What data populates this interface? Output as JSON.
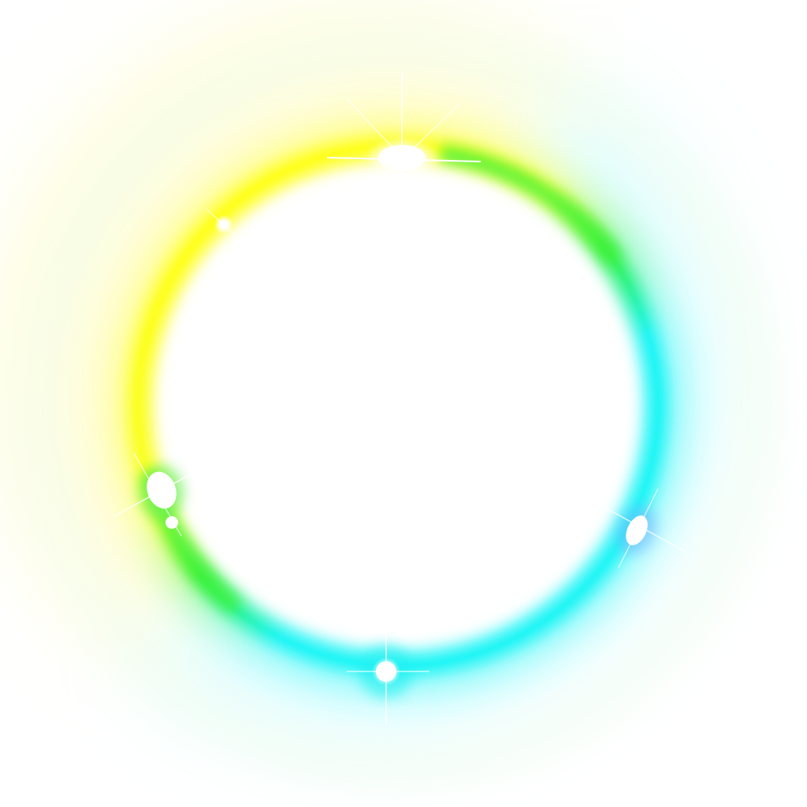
{
  "artwork": {
    "subject": "glowing-ring",
    "background_color": "#ffffff",
    "ring_colors": {
      "yellow": "#ffff1a",
      "green": "#3af23a",
      "cyan": "#22f5f5",
      "halo_yellow": "#ffffc8",
      "halo_cyan": "#c8ffff"
    },
    "sparkles": [
      {
        "name": "sparkle-top"
      },
      {
        "name": "sparkle-upper-left"
      },
      {
        "name": "sparkle-left"
      },
      {
        "name": "sparkle-right"
      },
      {
        "name": "sparkle-bottom"
      }
    ]
  }
}
